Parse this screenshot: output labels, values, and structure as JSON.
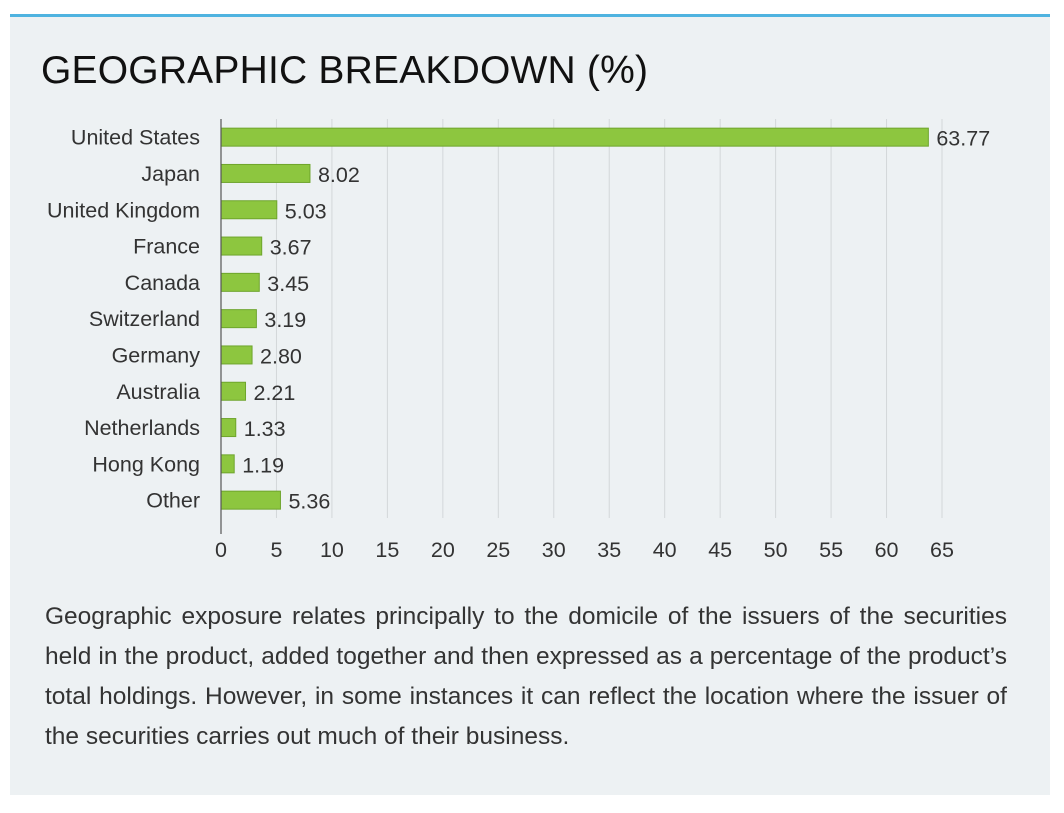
{
  "title": "GEOGRAPHIC BREAKDOWN (%)",
  "description": "Geographic exposure relates principally to the domicile of the issuers of the securities held in the product, added together and then expressed as a percentage of the product’s total holdings. However, in some instances it can reflect the location where the issuer of the securities carries out much of their business.",
  "colors": {
    "bar": "#8dc63f",
    "bar_edge": "#6ea52c",
    "accent": "#4fb3e0",
    "panel": "#edf1f3",
    "grid": "#d3d7da"
  },
  "chart_data": {
    "type": "bar",
    "orientation": "horizontal",
    "title": "GEOGRAPHIC BREAKDOWN (%)",
    "xlabel": "",
    "ylabel": "",
    "categories": [
      "United States",
      "Japan",
      "United Kingdom",
      "France",
      "Canada",
      "Switzerland",
      "Germany",
      "Australia",
      "Netherlands",
      "Hong Kong",
      "Other"
    ],
    "values": [
      63.77,
      8.02,
      5.03,
      3.67,
      3.45,
      3.19,
      2.8,
      2.21,
      1.33,
      1.19,
      5.36
    ],
    "value_labels": [
      "63.77",
      "8.02",
      "5.03",
      "3.67",
      "3.45",
      "3.19",
      "2.80",
      "2.21",
      "1.33",
      "1.19",
      "5.36"
    ],
    "xlim": [
      0,
      65
    ],
    "x_ticks": [
      "0",
      "5",
      "10",
      "15",
      "20",
      "25",
      "30",
      "35",
      "40",
      "45",
      "50",
      "55",
      "60",
      "65"
    ],
    "grid": true,
    "legend": "none"
  }
}
